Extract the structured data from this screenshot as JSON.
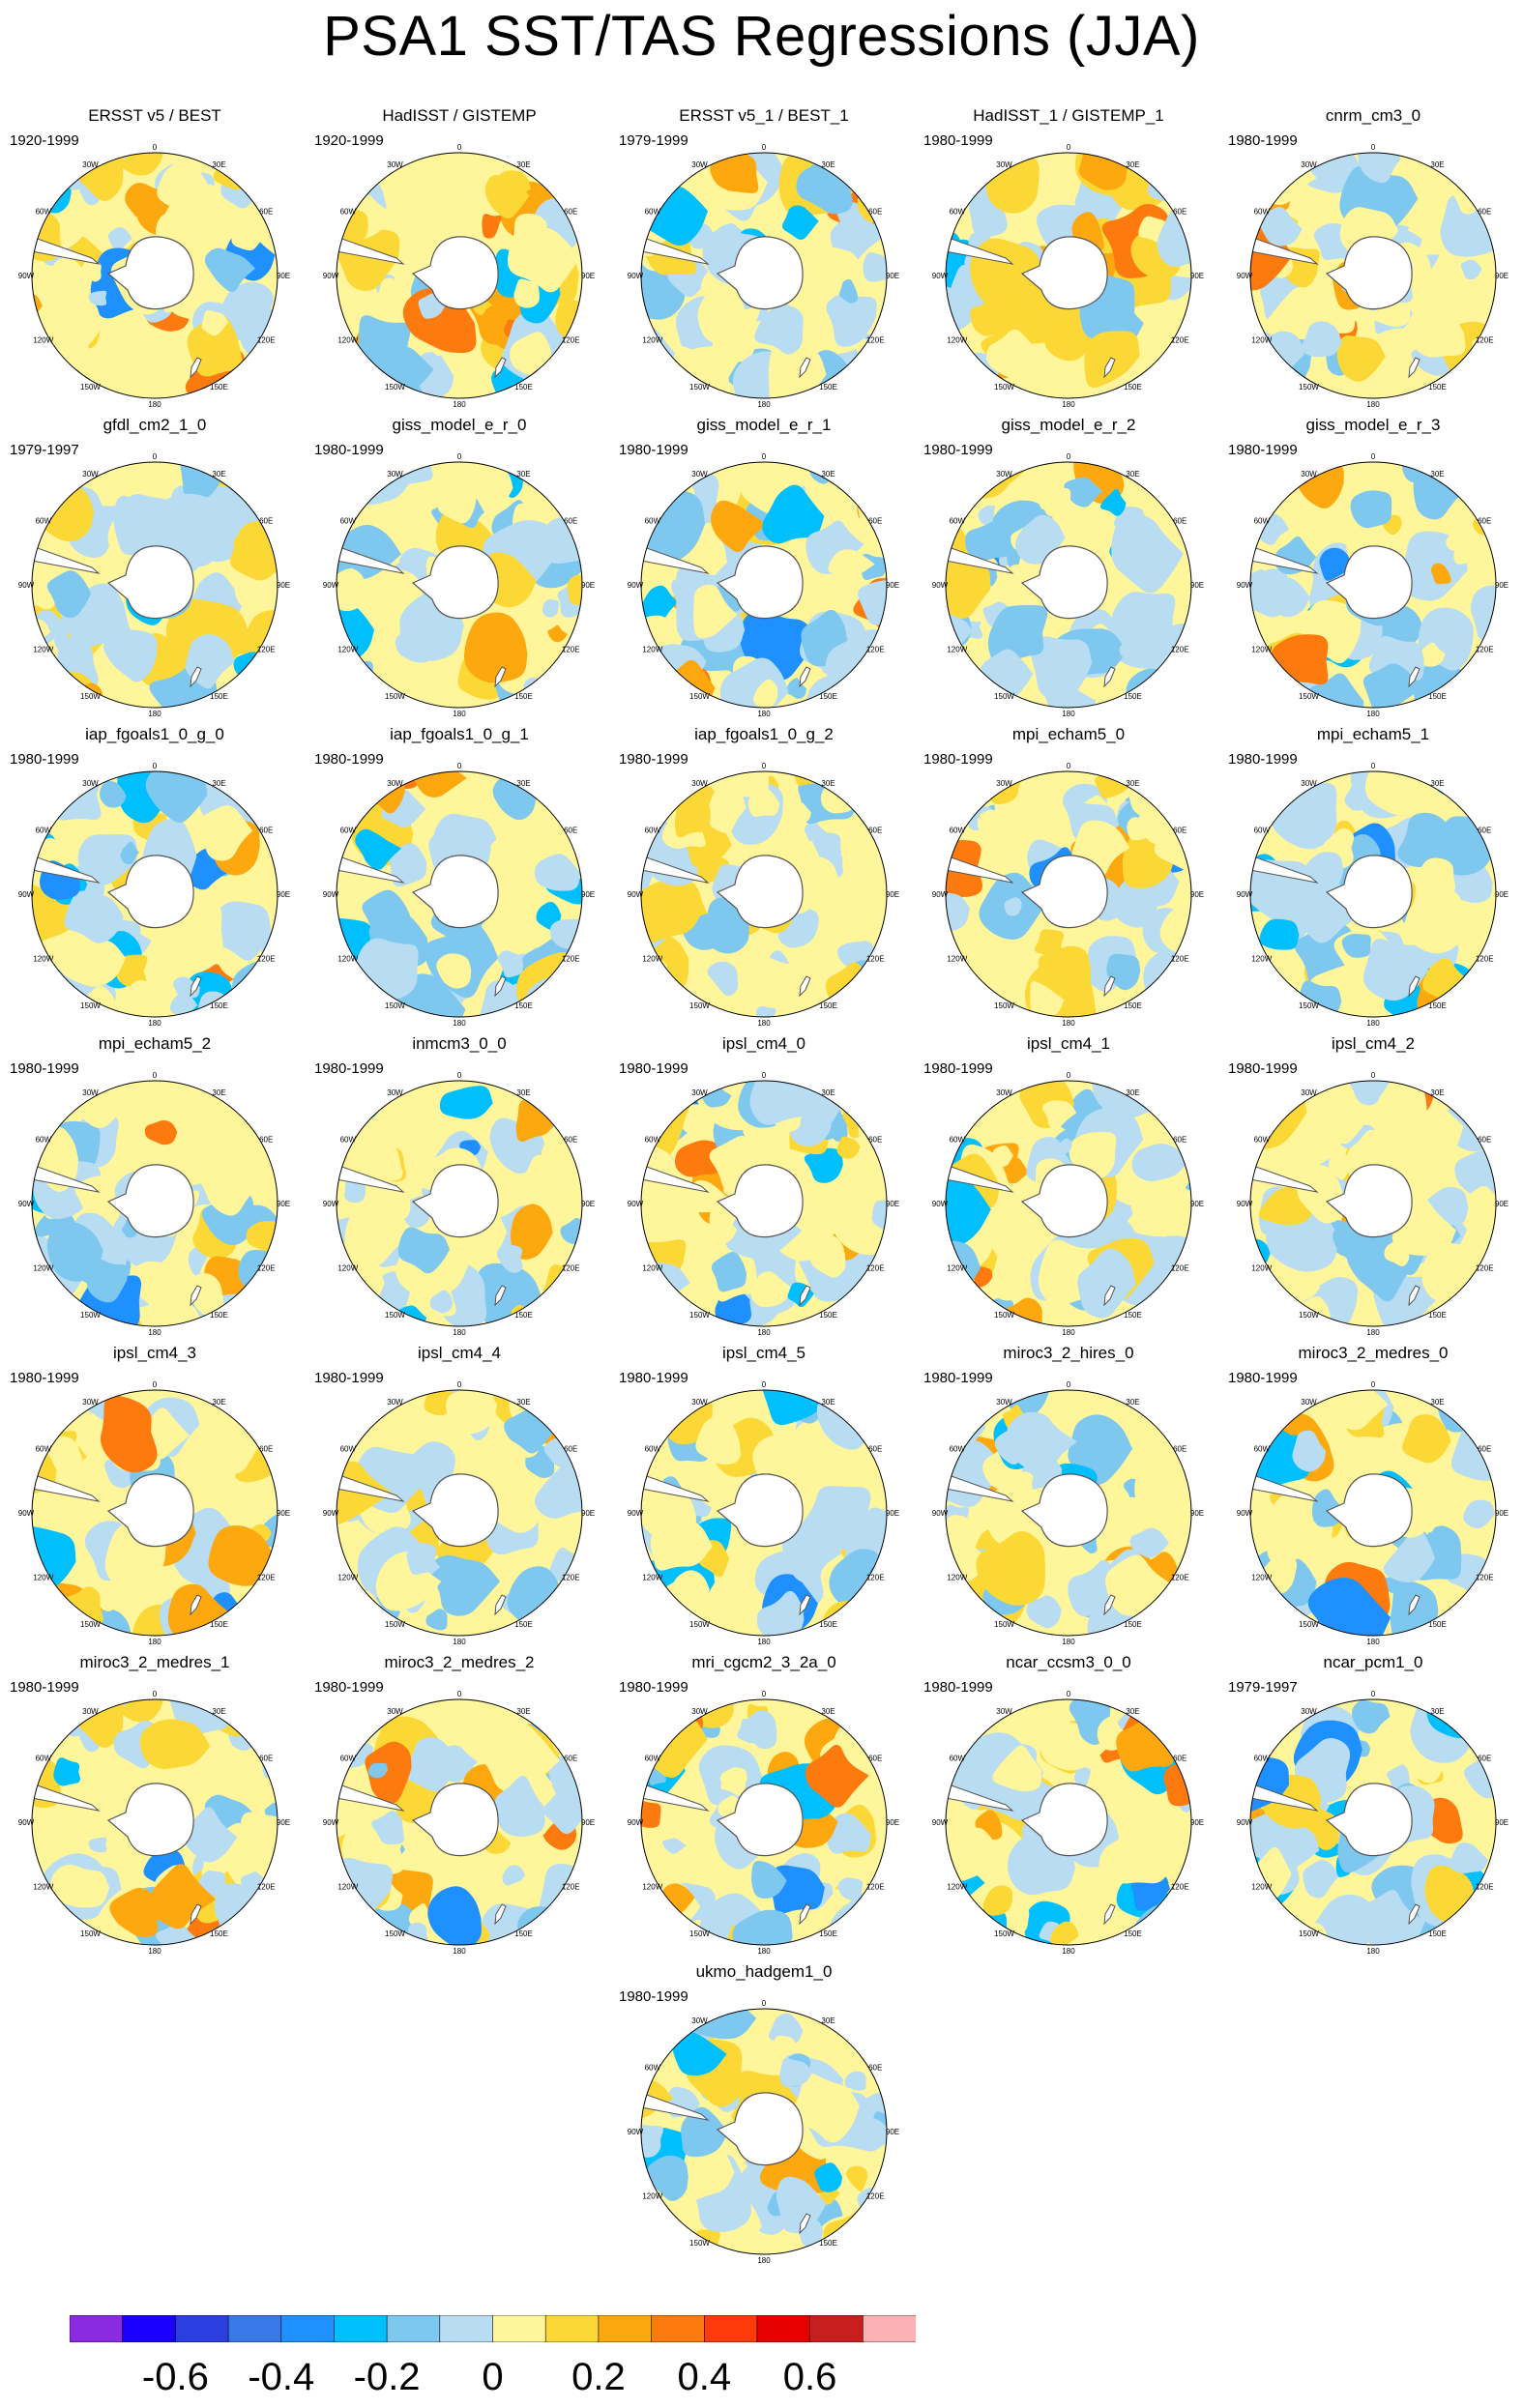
{
  "title": "PSA1 SST/TAS Regressions (JJA)",
  "panels": [
    {
      "name": "ERSST v5 / BEST",
      "period": "1920-1999"
    },
    {
      "name": "HadISST / GISTEMP",
      "period": "1920-1999"
    },
    {
      "name": "ERSST v5_1 / BEST_1",
      "period": "1979-1999"
    },
    {
      "name": "HadISST_1 / GISTEMP_1",
      "period": "1980-1999"
    },
    {
      "name": "cnrm_cm3_0",
      "period": "1980-1999"
    },
    {
      "name": "gfdl_cm2_1_0",
      "period": "1979-1997"
    },
    {
      "name": "giss_model_e_r_0",
      "period": "1980-1999"
    },
    {
      "name": "giss_model_e_r_1",
      "period": "1980-1999"
    },
    {
      "name": "giss_model_e_r_2",
      "period": "1980-1999"
    },
    {
      "name": "giss_model_e_r_3",
      "period": "1980-1999"
    },
    {
      "name": "iap_fgoals1_0_g_0",
      "period": "1980-1999"
    },
    {
      "name": "iap_fgoals1_0_g_1",
      "period": "1980-1999"
    },
    {
      "name": "iap_fgoals1_0_g_2",
      "period": "1980-1999"
    },
    {
      "name": "mpi_echam5_0",
      "period": "1980-1999"
    },
    {
      "name": "mpi_echam5_1",
      "period": "1980-1999"
    },
    {
      "name": "mpi_echam5_2",
      "period": "1980-1999"
    },
    {
      "name": "inmcm3_0_0",
      "period": "1980-1999"
    },
    {
      "name": "ipsl_cm4_0",
      "period": "1980-1999"
    },
    {
      "name": "ipsl_cm4_1",
      "period": "1980-1999"
    },
    {
      "name": "ipsl_cm4_2",
      "period": "1980-1999"
    },
    {
      "name": "ipsl_cm4_3",
      "period": "1980-1999"
    },
    {
      "name": "ipsl_cm4_4",
      "period": "1980-1999"
    },
    {
      "name": "ipsl_cm4_5",
      "period": "1980-1999"
    },
    {
      "name": "miroc3_2_hires_0",
      "period": "1980-1999"
    },
    {
      "name": "miroc3_2_medres_0",
      "period": "1980-1999"
    },
    {
      "name": "miroc3_2_medres_1",
      "period": "1980-1999"
    },
    {
      "name": "miroc3_2_medres_2",
      "period": "1980-1999"
    },
    {
      "name": "mri_cgcm2_3_2a_0",
      "period": "1980-1999"
    },
    {
      "name": "ncar_ccsm3_0_0",
      "period": "1980-1999"
    },
    {
      "name": "ncar_pcm1_0",
      "period": "1979-1997"
    },
    {
      "name": "ukmo_hadgem1_0",
      "period": "1980-1999"
    }
  ],
  "longitude_labels": [
    "0",
    "30E",
    "60E",
    "90E",
    "120E",
    "150E",
    "180",
    "150W",
    "120W",
    "90W",
    "60W",
    "30W"
  ],
  "colorbar": {
    "colors": [
      "#8a2be2",
      "#1a00ff",
      "#2c3ee0",
      "#3a78e8",
      "#1e90ff",
      "#00bfff",
      "#7ec8f0",
      "#b8dcf2",
      "#fff59a",
      "#fcd836",
      "#fca80e",
      "#fc7a0e",
      "#fc3a0a",
      "#e60000",
      "#c81e1e",
      "#fcb2b2"
    ],
    "tick_labels": [
      "-0.6",
      "-0.4",
      "-0.2",
      "0",
      "0.2",
      "0.4",
      "0.6"
    ]
  }
}
